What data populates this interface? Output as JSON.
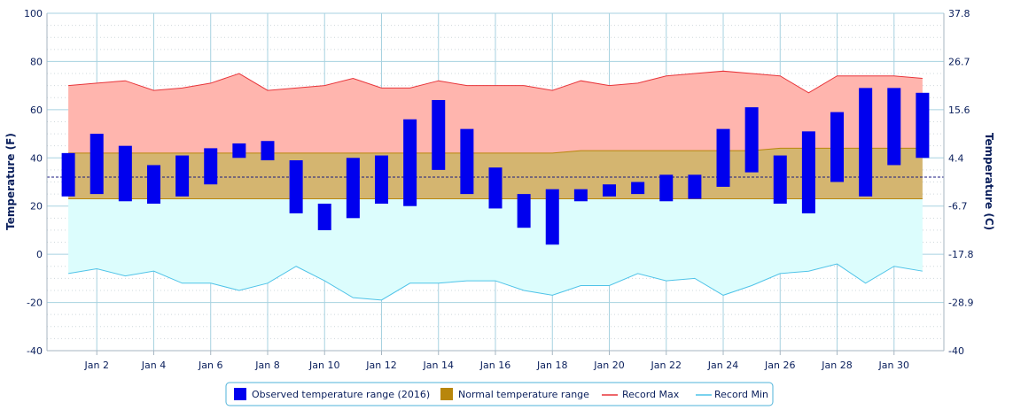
{
  "chart_data": {
    "type": "bar",
    "x": [
      "Jan 1",
      "Jan 2",
      "Jan 3",
      "Jan 4",
      "Jan 5",
      "Jan 6",
      "Jan 7",
      "Jan 8",
      "Jan 9",
      "Jan 10",
      "Jan 11",
      "Jan 12",
      "Jan 13",
      "Jan 14",
      "Jan 15",
      "Jan 16",
      "Jan 17",
      "Jan 18",
      "Jan 19",
      "Jan 20",
      "Jan 21",
      "Jan 22",
      "Jan 23",
      "Jan 24",
      "Jan 25",
      "Jan 26",
      "Jan 27",
      "Jan 28",
      "Jan 29",
      "Jan 30",
      "Jan 31"
    ],
    "x_tick_labels": [
      "Jan 2",
      "Jan 4",
      "Jan 6",
      "Jan 8",
      "Jan 10",
      "Jan 12",
      "Jan 14",
      "Jan 16",
      "Jan 18",
      "Jan 20",
      "Jan 22",
      "Jan 24",
      "Jan 26",
      "Jan 28",
      "Jan 30"
    ],
    "y_left": {
      "label": "Temperature (F)",
      "ylim": [
        -40,
        100
      ],
      "ticks": [
        "100",
        "80",
        "60",
        "40",
        "20",
        "0",
        "-20",
        "-40"
      ]
    },
    "y_right": {
      "label": "Temperature (C)",
      "ticks": [
        "37.8",
        "26.7",
        "15.6",
        "4.4",
        "-6.7",
        "-17.8",
        "-28.9",
        "-40"
      ]
    },
    "series": [
      {
        "name": "Observed temperature range (2016)",
        "type": "range-bar",
        "color": "#0000ee",
        "low": [
          24,
          25,
          22,
          21,
          24,
          29,
          40,
          39,
          17,
          10,
          15,
          21,
          20,
          35,
          25,
          19,
          11,
          4,
          22,
          24,
          25,
          22,
          23,
          28,
          34,
          21,
          17,
          30,
          24,
          37,
          40
        ],
        "high": [
          42,
          50,
          45,
          37,
          41,
          44,
          46,
          47,
          39,
          21,
          40,
          41,
          56,
          64,
          52,
          36,
          25,
          27,
          27,
          29,
          30,
          33,
          33,
          52,
          61,
          41,
          51,
          59,
          69,
          69,
          67
        ]
      },
      {
        "name": "Normal temperature range",
        "type": "area-range",
        "color": "#b8860b",
        "low": [
          23,
          23,
          23,
          23,
          23,
          23,
          23,
          23,
          23,
          23,
          23,
          23,
          23,
          23,
          23,
          23,
          23,
          23,
          23,
          23,
          23,
          23,
          23,
          23,
          23,
          23,
          23,
          23,
          23,
          23,
          23
        ],
        "high": [
          42,
          42,
          42,
          42,
          42,
          42,
          42,
          42,
          42,
          42,
          42,
          42,
          42,
          42,
          42,
          42,
          42,
          42,
          43,
          43,
          43,
          43,
          43,
          43,
          43,
          44,
          44,
          44,
          44,
          44,
          44
        ]
      },
      {
        "name": "Record Max",
        "type": "line",
        "color": "#e8353a",
        "values": [
          70,
          71,
          72,
          68,
          69,
          71,
          75,
          68,
          69,
          70,
          73,
          69,
          69,
          72,
          70,
          70,
          70,
          68,
          72,
          70,
          71,
          74,
          75,
          76,
          75,
          74,
          67,
          74,
          74,
          74,
          73
        ]
      },
      {
        "name": "Record Min",
        "type": "line",
        "color": "#4fc3e8",
        "values": [
          -8,
          -6,
          -9,
          -7,
          -12,
          -12,
          -15,
          -12,
          -5,
          -11,
          -18,
          -19,
          -12,
          -12,
          -11,
          -11,
          -15,
          -17,
          -13,
          -13,
          -8,
          -11,
          -10,
          -17,
          -13,
          -8,
          -7,
          -4,
          -12,
          -5,
          -7
        ]
      }
    ],
    "freezing_line_f": 32,
    "legend_position": "bottom-center",
    "grid": true
  },
  "colors": {
    "record_max_fill": "#ffb5ae",
    "record_min_fill": "#dcfdfd",
    "normal_fill": "#d4b570",
    "grid": "#a7d2e0",
    "axis": "#0a1f5c"
  }
}
